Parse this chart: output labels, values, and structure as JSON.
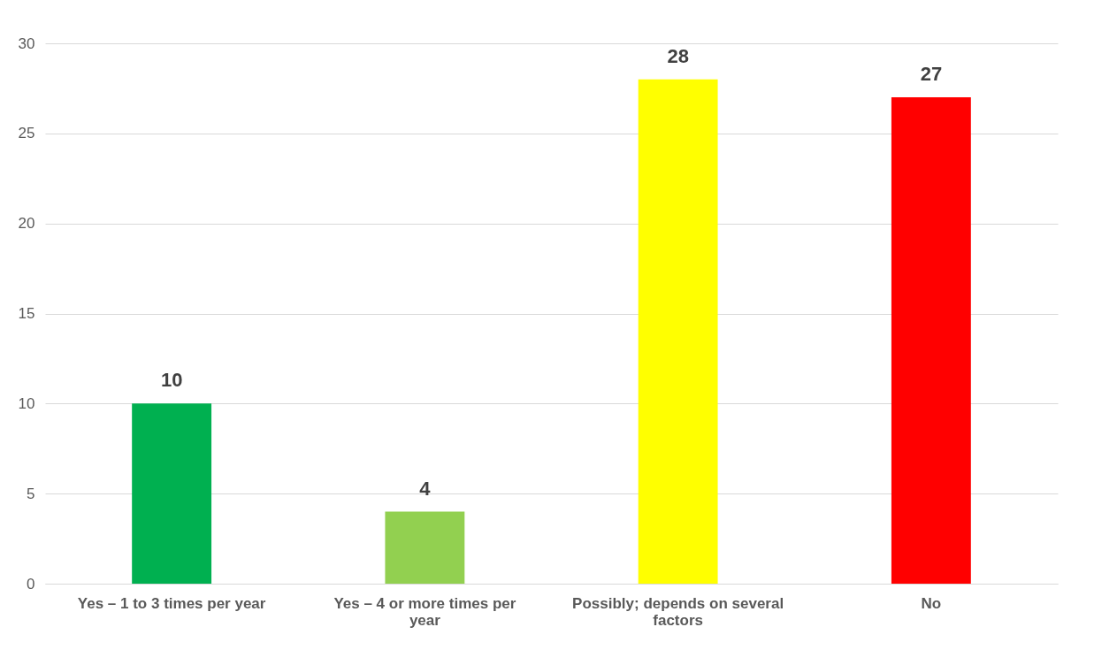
{
  "chart_data": {
    "type": "bar",
    "categories": [
      "Yes – 1 to 3 times per year",
      "Yes – 4 or more times per year",
      "Possibly; depends on several factors",
      "No"
    ],
    "values": [
      10,
      4,
      28,
      27
    ],
    "colors": [
      "#00b050",
      "#92d050",
      "#ffff00",
      "#ff0000"
    ],
    "ylim": [
      0,
      30
    ],
    "yticks": [
      0,
      5,
      10,
      15,
      20,
      25,
      30
    ],
    "grid": "y",
    "data_labels": true
  }
}
